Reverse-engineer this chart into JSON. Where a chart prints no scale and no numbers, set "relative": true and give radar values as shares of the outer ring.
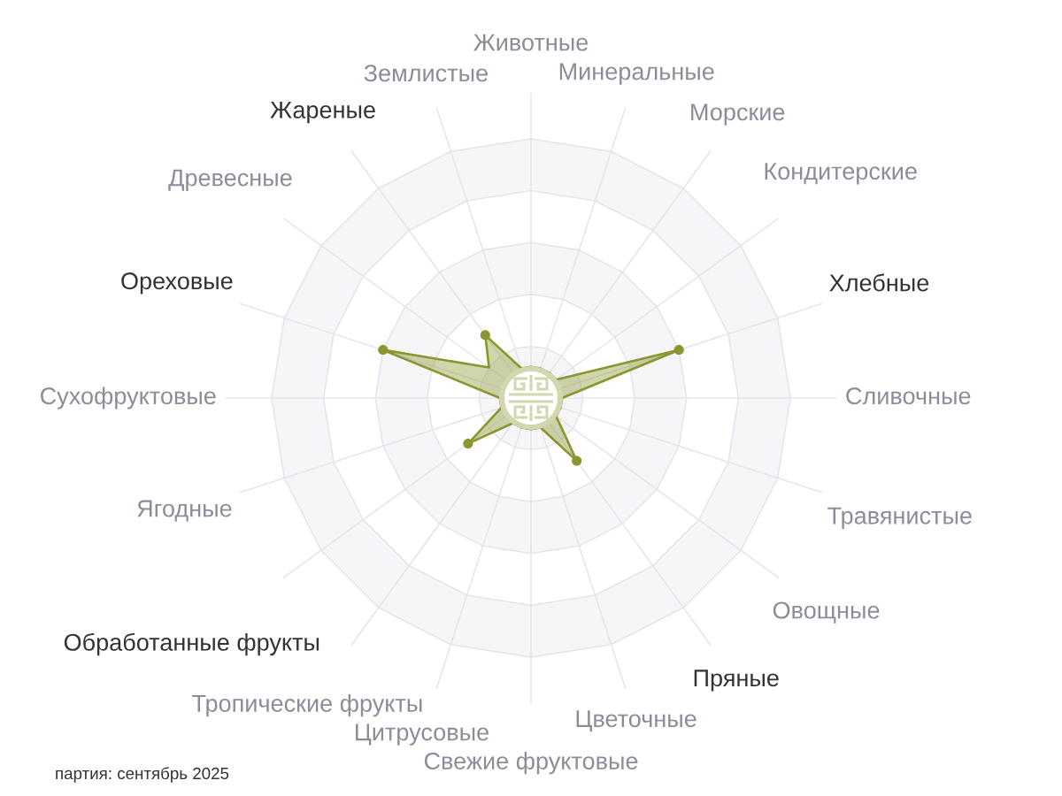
{
  "chart_data": {
    "type": "radar",
    "relative": true,
    "grid": true,
    "marker": "circle",
    "categories": [
      "Животные",
      "Минеральные",
      "Морские",
      "Кондитерские",
      "Хлебные",
      "Сливочные",
      "Травянистые",
      "Овощные",
      "Пряные",
      "Цветочные",
      "Свежие фруктовые",
      "Цитрусовые",
      "Тропические фрукты",
      "Обработанные фрукты",
      "Ягодные",
      "Сухофруктовые",
      "Ореховые",
      "Древесные",
      "Жареные",
      "Землистые"
    ],
    "series": [
      {
        "color": "#8c9630",
        "values": [
          0.12,
          0.12,
          0.12,
          0.12,
          0.6,
          0.12,
          0.12,
          0.12,
          0.3,
          0.12,
          0.12,
          0.12,
          0.12,
          0.3,
          0.12,
          0.12,
          0.6,
          0.2,
          0.3,
          0.12
        ]
      }
    ],
    "annotations": [
      "партия: сентябрь 2025"
    ]
  }
}
